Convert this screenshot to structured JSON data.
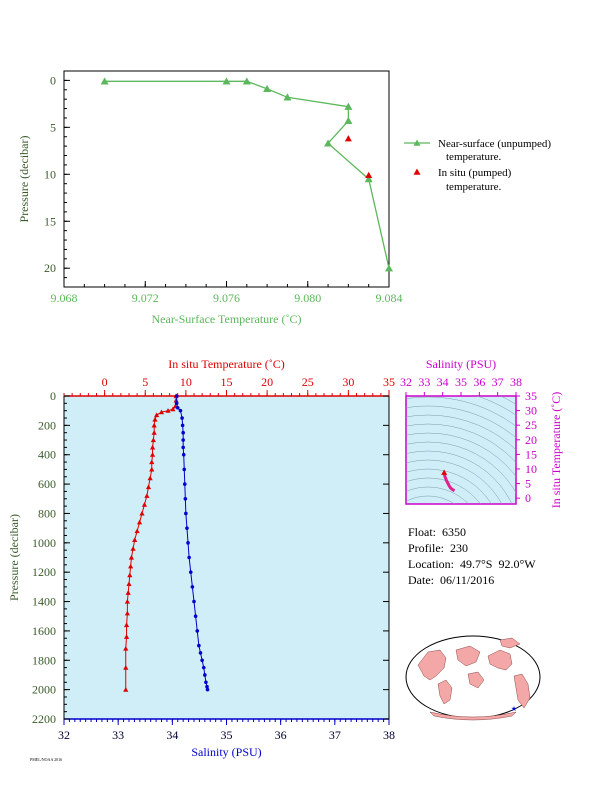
{
  "float_info": {
    "float": "Float:  6350",
    "profile": "Profile:  230",
    "location": "Location:  49.7°S  92.0°W",
    "date": "Date:  06/11/2016"
  },
  "footer_text": "PMEL/NOAA 2016",
  "chart_data": [
    {
      "type": "line",
      "xlabel": "Near-Surface Temperature (˚C)",
      "ylabel": "Pressure (decibar)",
      "xlim": [
        9.068,
        9.084
      ],
      "ylim": [
        22,
        -1
      ],
      "x_ticks": [
        "9.068",
        "9.072",
        "9.076",
        "9.080",
        "9.084"
      ],
      "y_ticks": [
        "0",
        "5",
        "10",
        "15",
        "20"
      ],
      "grid": false,
      "colors": {
        "near_surface": "#5cb85c",
        "in_situ": "#e00000",
        "axis": "#5cb85c"
      },
      "series": [
        {
          "name": "Near-surface (unpumped) temperature.",
          "marker": "triangle",
          "x": [
            9.07,
            9.076,
            9.077,
            9.078,
            9.079,
            9.082,
            9.082,
            9.081,
            9.083,
            9.084
          ],
          "y": [
            0.1,
            0.1,
            0.1,
            0.9,
            1.8,
            2.8,
            4.3,
            6.7,
            10.5,
            20
          ]
        },
        {
          "name": "In situ (pumped) temperature.",
          "marker": "triangle",
          "x": [
            9.082,
            9.083
          ],
          "y": [
            6.2,
            10.1
          ]
        }
      ],
      "legend_position": "right"
    },
    {
      "type": "line",
      "x_top_label": "In situ Temperature (˚C)",
      "x_bottom_label": "Salinity (PSU)",
      "ylabel": "Pressure (decibar)",
      "temp_lim": [
        -5,
        35
      ],
      "sal_lim": [
        32,
        38
      ],
      "ylim": [
        2200,
        0
      ],
      "temp_ticks": [
        "0",
        "5",
        "10",
        "15",
        "20",
        "25",
        "30",
        "35"
      ],
      "sal_ticks": [
        "32",
        "33",
        "34",
        "35",
        "36",
        "37",
        "38"
      ],
      "y_ticks": [
        "0",
        "200",
        "400",
        "600",
        "800",
        "1000",
        "1200",
        "1400",
        "1600",
        "1800",
        "2000",
        "2200"
      ],
      "colors": {
        "temperature": "#e00000",
        "salinity": "#0000cc",
        "background": "#d0eef8"
      },
      "series": [
        {
          "name": "temperature",
          "x": [
            8.8,
            8.8,
            8.7,
            8.4,
            7.8,
            7.0,
            6.4,
            6.2,
            6.1,
            6.1,
            6.0,
            5.9,
            5.9,
            5.8,
            5.8,
            5.6,
            5.4,
            5.2,
            4.9,
            4.6,
            4.3,
            4.0,
            3.7,
            3.5,
            3.3,
            3.2,
            3.1,
            3.0,
            2.9,
            2.8,
            2.8,
            2.7,
            2.7,
            2.6,
            2.6,
            2.6
          ],
          "y": [
            0,
            30,
            70,
            90,
            100,
            110,
            130,
            160,
            200,
            250,
            300,
            350,
            400,
            450,
            500,
            560,
            620,
            680,
            740,
            800,
            860,
            920,
            980,
            1040,
            1100,
            1160,
            1220,
            1280,
            1340,
            1400,
            1480,
            1560,
            1640,
            1720,
            1850,
            2000
          ]
        },
        {
          "name": "salinity",
          "x": [
            34.08,
            34.08,
            34.1,
            34.15,
            34.18,
            34.19,
            34.2,
            34.2,
            34.2,
            34.21,
            34.22,
            34.23,
            34.24,
            34.25,
            34.27,
            34.29,
            34.31,
            34.34,
            34.37,
            34.4,
            34.43,
            34.46,
            34.49,
            34.52,
            34.55,
            34.58,
            34.6,
            34.62,
            34.64,
            34.65
          ],
          "y": [
            0,
            50,
            80,
            100,
            150,
            200,
            250,
            300,
            350,
            400,
            500,
            600,
            700,
            800,
            900,
            1000,
            1100,
            1200,
            1300,
            1400,
            1500,
            1600,
            1700,
            1750,
            1800,
            1850,
            1900,
            1950,
            1980,
            2000
          ]
        }
      ]
    },
    {
      "type": "scatter",
      "xlabel": "Salinity (PSU)",
      "ylabel": "In situ Temperature (˚C)",
      "xlim": [
        32,
        38
      ],
      "ylim": [
        -2,
        35
      ],
      "x_ticks": [
        "32",
        "33",
        "34",
        "35",
        "36",
        "37",
        "38"
      ],
      "y_ticks": [
        "0",
        "5",
        "10",
        "15",
        "20",
        "25",
        "30",
        "35"
      ],
      "colors": {
        "points": "#e0208c",
        "axis": "#cc00cc",
        "contours": "#7a9aaa"
      },
      "x": [
        34.08,
        34.12,
        34.18,
        34.2,
        34.22,
        34.25,
        34.3,
        34.35,
        34.42,
        34.5,
        34.58,
        34.65
      ],
      "y": [
        8.8,
        7.5,
        6.5,
        6.1,
        5.9,
        5.5,
        4.9,
        4.3,
        3.6,
        3.1,
        2.8,
        2.6
      ]
    }
  ]
}
